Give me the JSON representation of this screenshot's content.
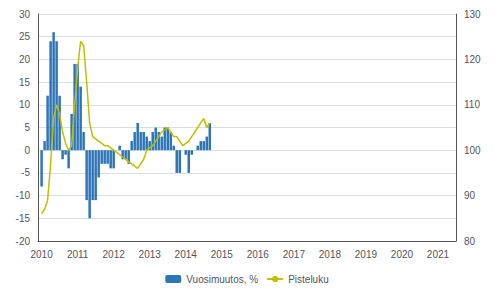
{
  "chart_data": {
    "type": "bar",
    "x": [
      2010,
      2010.0833333333333,
      2010.1666666666667,
      2010.25,
      2010.3333333333333,
      2010.4166666666667,
      2010.5,
      2010.5833333333333,
      2010.6666666666667,
      2010.75,
      2010.8333333333333,
      2010.9166666666667,
      2011,
      2011.0833333333333,
      2011.1666666666667,
      2011.25,
      2011.3333333333333,
      2011.4166666666667,
      2011.5,
      2011.5833333333333,
      2011.6666666666667,
      2011.75,
      2011.8333333333333,
      2011.9166666666667,
      2012,
      2012.0833333333333,
      2012.1666666666667,
      2012.25,
      2012.3333333333333,
      2012.4166666666667,
      2012.5,
      2012.5833333333333,
      2012.6666666666667,
      2012.75,
      2012.8333333333333,
      2012.9166666666667,
      2013,
      2013.0833333333333,
      2013.1666666666667,
      2013.25,
      2013.3333333333333,
      2013.4166666666667,
      2013.5,
      2013.5833333333333,
      2013.6666666666667,
      2013.75,
      2013.8333333333333,
      2013.9166666666667,
      2014,
      2014.0833333333333,
      2014.1666666666667,
      2014.25,
      2014.3333333333333,
      2014.4166666666667,
      2014.5,
      2014.5833333333333,
      2014.6666666666667
    ],
    "xlim": [
      2009.9,
      2021.5
    ],
    "xticks": [
      2010,
      2011,
      2012,
      2013,
      2014,
      2015,
      2016,
      2017,
      2018,
      2019,
      2020,
      2021
    ],
    "ylim": [
      -20,
      30
    ],
    "yticks": [
      -20,
      -15,
      -10,
      -5,
      0,
      5,
      10,
      15,
      20,
      25,
      30
    ],
    "y2lim": [
      80,
      130
    ],
    "y2ticks": [
      80,
      90,
      100,
      110,
      120,
      130
    ],
    "grid": true,
    "legend": "bottom",
    "series": [
      {
        "name": "Vuosimuutos, %",
        "type": "bar",
        "color": "#2E75B6",
        "values": [
          -8.0,
          2.0,
          12.0,
          24.0,
          26.0,
          24.0,
          12.0,
          -2.0,
          -1.0,
          -4.0,
          8.0,
          19.0,
          19.0,
          14.0,
          4.0,
          -11.0,
          -15.0,
          -11.0,
          -11.0,
          -6.0,
          -3.0,
          -3.0,
          -3.0,
          -4.0,
          -4.0,
          0.0,
          1.0,
          -2.0,
          -2.0,
          -3.0,
          2.0,
          4.0,
          6.0,
          4.0,
          4.0,
          3.0,
          2.0,
          4.0,
          5.0,
          4.0,
          3.0,
          5.0,
          5.0,
          4.0,
          1.0,
          -5.0,
          -5.0,
          0.0,
          -1.0,
          -5.0,
          -1.0,
          0.0,
          1.0,
          2.0,
          2.0,
          3.0,
          6.0
        ]
      },
      {
        "name": "Pisteluku",
        "type": "line",
        "axis": "y2",
        "color": "#BFBF00",
        "values": [
          86.0,
          87.0,
          89.0,
          97.0,
          107.0,
          110.0,
          108.0,
          104.0,
          101.5,
          100.0,
          101.0,
          110.0,
          118.0,
          124.0,
          123.0,
          115.0,
          106.0,
          103.0,
          102.5,
          102.0,
          101.5,
          101.0,
          101.0,
          100.5,
          100.0,
          99.5,
          99.0,
          98.5,
          98.0,
          97.5,
          97.0,
          96.5,
          96.0,
          97.0,
          98.0,
          100.0,
          100.5,
          101.0,
          102.0,
          103.0,
          104.0,
          104.5,
          105.0,
          104.0,
          103.0,
          103.0,
          102.0,
          101.0,
          101.5,
          102.0,
          103.0,
          104.0,
          105.0,
          106.0,
          107.0,
          105.0,
          106.0
        ]
      }
    ]
  }
}
